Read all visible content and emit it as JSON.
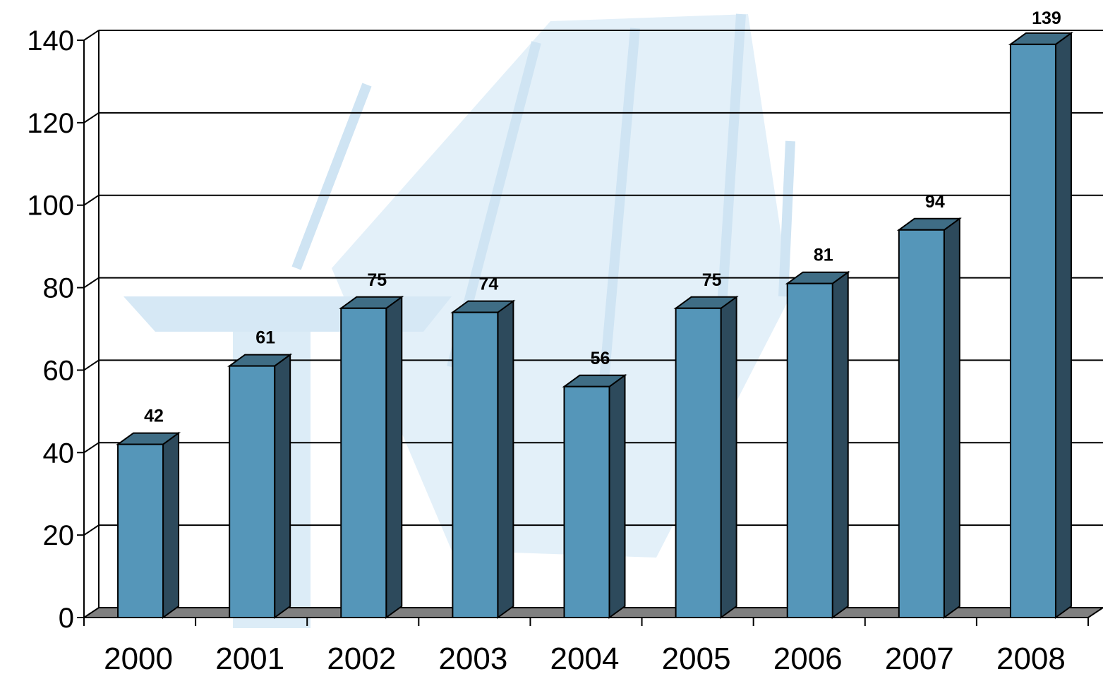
{
  "chart_data": {
    "type": "bar",
    "categories": [
      "2000",
      "2001",
      "2002",
      "2003",
      "2004",
      "2005",
      "2006",
      "2007",
      "2008"
    ],
    "values": [
      42,
      61,
      75,
      74,
      56,
      75,
      81,
      94,
      139
    ],
    "data_labels": [
      "42",
      "61",
      "75",
      "74",
      "56",
      "75",
      "81",
      "94",
      "139"
    ],
    "ylim": [
      0,
      140
    ],
    "yticks": [
      "0",
      "20",
      "40",
      "60",
      "80",
      "100",
      "120",
      "140"
    ],
    "grid": true,
    "style": "3d",
    "colors": {
      "bar_front": "#5596b9",
      "bar_side": "#2d4a5c",
      "bar_top": "#3f6d85",
      "floor": "#808080"
    }
  }
}
